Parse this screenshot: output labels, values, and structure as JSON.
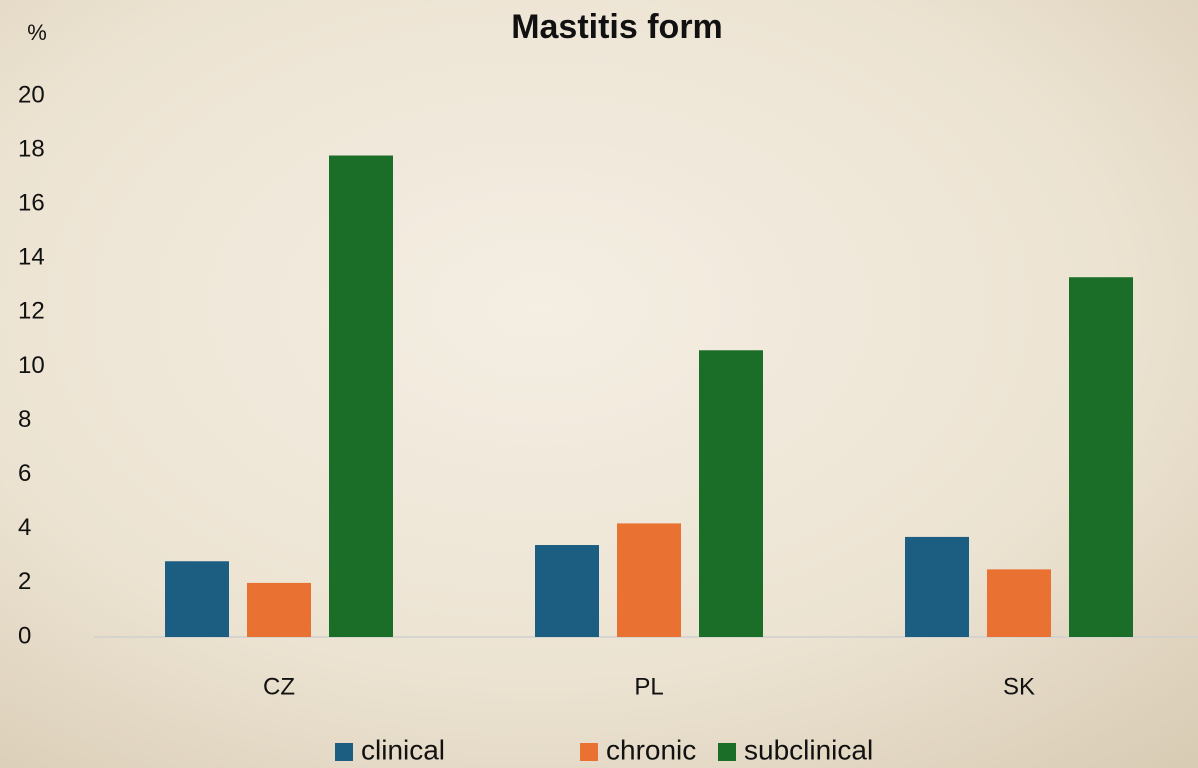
{
  "chart_data": {
    "type": "bar",
    "title": "Mastitis form",
    "y_label": "%",
    "categories": [
      "CZ",
      "PL",
      "SK"
    ],
    "series": [
      {
        "name": "clinical",
        "color": "#1b5e82",
        "values": [
          2.8,
          3.4,
          3.7
        ]
      },
      {
        "name": "chronic",
        "color": "#e97132",
        "values": [
          2.0,
          4.2,
          2.5
        ]
      },
      {
        "name": "subclinical",
        "color": "#1a6e27",
        "values": [
          17.8,
          10.6,
          13.3
        ]
      }
    ],
    "ylim": [
      0,
      20
    ],
    "yticks": [
      0,
      2,
      4,
      6,
      8,
      10,
      12,
      14,
      16,
      18,
      20
    ],
    "grid": false,
    "legend": "bottom"
  }
}
